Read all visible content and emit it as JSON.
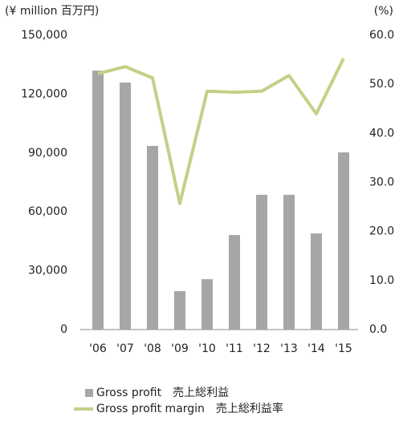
{
  "chart_data": {
    "type": "bar_line",
    "y_label": "(¥ million  百万円)",
    "y2_label": "(%)",
    "categories": [
      "'06",
      "'07",
      "'08",
      "'09",
      "'10",
      "'11",
      "'12",
      "'13",
      "'14",
      "'15"
    ],
    "series": [
      {
        "name": "Gross profit　売上総利益",
        "color": "#a6a6a6",
        "type": "bar",
        "values": [
          132000,
          125900,
          93600,
          19600,
          25700,
          48200,
          68700,
          68700,
          49000,
          90300
        ]
      },
      {
        "name": "Gross profit margin　売上総利益率",
        "color": "#c5cf87",
        "type": "line",
        "axis": "y2",
        "values": [
          52.2,
          53.6,
          51.3,
          25.7,
          48.6,
          48.4,
          48.6,
          51.8,
          44.0,
          55.3
        ]
      }
    ],
    "ylim": [
      0,
      150000
    ],
    "yticks": [
      0,
      {
        "value": 30000,
        "label": "30,000"
      },
      {
        "value": 60000,
        "label": "60,000"
      },
      {
        "value": 90000,
        "label": "90,000"
      },
      {
        "value": 120000,
        "label": "120,000"
      },
      {
        "value": 150000,
        "label": "150,000"
      }
    ],
    "y2lim": [
      0,
      60
    ],
    "y2ticks": [
      {
        "value": 0,
        "label": "0.0"
      },
      {
        "value": 10,
        "label": "10.0"
      },
      {
        "value": 20,
        "label": "20.0"
      },
      {
        "value": 30,
        "label": "30.0"
      },
      {
        "value": 40,
        "label": "40.0"
      },
      {
        "value": 50,
        "label": "50.0"
      },
      {
        "value": 60,
        "label": "60.0"
      }
    ],
    "grid": false,
    "legend": "bottom"
  }
}
